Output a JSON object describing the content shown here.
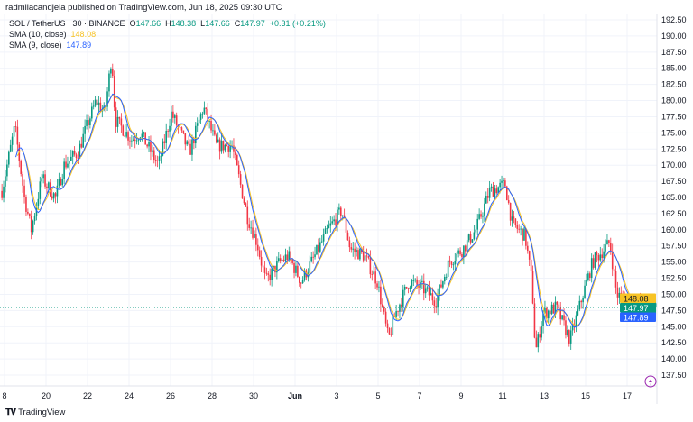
{
  "header": {
    "publisher_line": "radmilacandjela published on TradingView.com, Jun 18, 2025 09:30 UTC"
  },
  "legend": {
    "symbol": "SOL / TetherUS · 30 · BINANCE",
    "open_label": "O",
    "open": "147.66",
    "high_label": "H",
    "high": "148.38",
    "low_label": "L",
    "low": "147.66",
    "close_label": "C",
    "close": "147.97",
    "change": "+0.31 (+0.21%)",
    "sma10_label": "SMA (10, close)",
    "sma10_value": "148.08",
    "sma9_label": "SMA (9, close)",
    "sma9_value": "147.89"
  },
  "footer": {
    "brand": "TradingView",
    "logo_text": "TV"
  },
  "chart_data": {
    "type": "candlestick",
    "symbol": "SOL / TetherUS",
    "interval": "30",
    "exchange": "BINANCE",
    "colors": {
      "up": "#089981",
      "down": "#f23645",
      "sma10": "#f7c325",
      "sma9": "#2962ff",
      "last_price": "#089981"
    },
    "y_range": [
      136,
      194
    ],
    "y_ticks": [
      "192.50",
      "190.00",
      "187.50",
      "185.00",
      "182.50",
      "180.00",
      "177.50",
      "175.00",
      "172.50",
      "170.00",
      "167.50",
      "165.00",
      "162.50",
      "160.00",
      "157.50",
      "155.00",
      "152.50",
      "150.00",
      "147.50",
      "145.00",
      "142.50",
      "140.00",
      "137.50"
    ],
    "x_ticks": [
      {
        "label": "8",
        "date": "2025-05-18"
      },
      {
        "label": "20",
        "date": "2025-05-20"
      },
      {
        "label": "22",
        "date": "2025-05-22"
      },
      {
        "label": "24",
        "date": "2025-05-24"
      },
      {
        "label": "26",
        "date": "2025-05-26"
      },
      {
        "label": "28",
        "date": "2025-05-28"
      },
      {
        "label": "30",
        "date": "2025-05-30"
      },
      {
        "label": "Jun",
        "date": "2025-06-01",
        "bold": true
      },
      {
        "label": "3",
        "date": "2025-06-03"
      },
      {
        "label": "5",
        "date": "2025-06-05"
      },
      {
        "label": "7",
        "date": "2025-06-07"
      },
      {
        "label": "9",
        "date": "2025-06-09"
      },
      {
        "label": "11",
        "date": "2025-06-11"
      },
      {
        "label": "13",
        "date": "2025-06-13"
      },
      {
        "label": "15",
        "date": "2025-06-15"
      },
      {
        "label": "17",
        "date": "2025-06-17"
      }
    ],
    "price_labels": [
      {
        "name": "sma10",
        "value": "148.08"
      },
      {
        "name": "last",
        "value": "147.97"
      },
      {
        "name": "sma9",
        "value": "147.89"
      }
    ],
    "approx_close_path": [
      [
        "2025-05-17T21:00",
        166
      ],
      [
        "2025-05-18T12:00",
        176
      ],
      [
        "2025-05-18T23:00",
        165
      ],
      [
        "2025-05-19T07:00",
        160
      ],
      [
        "2025-05-19T19:00",
        168
      ],
      [
        "2025-05-20T11:00",
        165
      ],
      [
        "2025-05-20T21:00",
        170
      ],
      [
        "2025-05-21T13:00",
        172
      ],
      [
        "2025-05-21T23:00",
        176
      ],
      [
        "2025-05-22T10:00",
        180
      ],
      [
        "2025-05-22T20:00",
        178
      ],
      [
        "2025-05-23T04:00",
        187
      ],
      [
        "2025-05-23T08:00",
        177
      ],
      [
        "2025-05-24T03:00",
        174
      ],
      [
        "2025-05-24T13:00",
        175
      ],
      [
        "2025-05-25T10:00",
        170
      ],
      [
        "2025-05-26T01:00",
        178
      ],
      [
        "2025-05-26T22:00",
        172
      ],
      [
        "2025-05-27T14:00",
        179
      ],
      [
        "2025-05-28T05:00",
        173
      ],
      [
        "2025-05-28T23:00",
        173
      ],
      [
        "2025-05-29T17:00",
        162
      ],
      [
        "2025-05-30T04:00",
        158
      ],
      [
        "2025-05-30T14:00",
        152
      ],
      [
        "2025-05-31T06:00",
        155
      ],
      [
        "2025-05-31T16:00",
        156
      ],
      [
        "2025-06-01T07:00",
        152
      ],
      [
        "2025-06-01T23:00",
        156
      ],
      [
        "2025-06-02T14:00",
        160
      ],
      [
        "2025-06-03T06:00",
        163
      ],
      [
        "2025-06-03T16:00",
        157
      ],
      [
        "2025-06-04T08:00",
        156
      ],
      [
        "2025-06-04T23:00",
        152
      ],
      [
        "2025-06-05T12:00",
        143
      ],
      [
        "2025-06-05T20:00",
        147
      ],
      [
        "2025-06-06T12:00",
        152
      ],
      [
        "2025-06-07T03:00",
        151
      ],
      [
        "2025-06-07T19:00",
        149
      ],
      [
        "2025-06-08T10:00",
        155
      ],
      [
        "2025-06-09T02:00",
        157
      ],
      [
        "2025-06-09T17:00",
        160
      ],
      [
        "2025-06-10T09:00",
        166
      ],
      [
        "2025-06-11T03:00",
        167
      ],
      [
        "2025-06-11T11:00",
        161
      ],
      [
        "2025-06-12T02:00",
        159
      ],
      [
        "2025-06-12T10:00",
        152
      ],
      [
        "2025-06-12T14:00",
        141
      ],
      [
        "2025-06-12T23:00",
        147
      ],
      [
        "2025-06-13T14:00",
        148
      ],
      [
        "2025-06-14T06:00",
        143
      ],
      [
        "2025-06-14T21:00",
        150
      ],
      [
        "2025-06-15T08:00",
        155
      ],
      [
        "2025-06-16T04:00",
        158
      ],
      [
        "2025-06-16T12:00",
        150
      ],
      [
        "2025-06-17T01:00",
        149
      ],
      [
        "2025-06-17T17:00",
        148
      ],
      [
        "2025-06-18T09:30",
        147.97
      ]
    ]
  }
}
